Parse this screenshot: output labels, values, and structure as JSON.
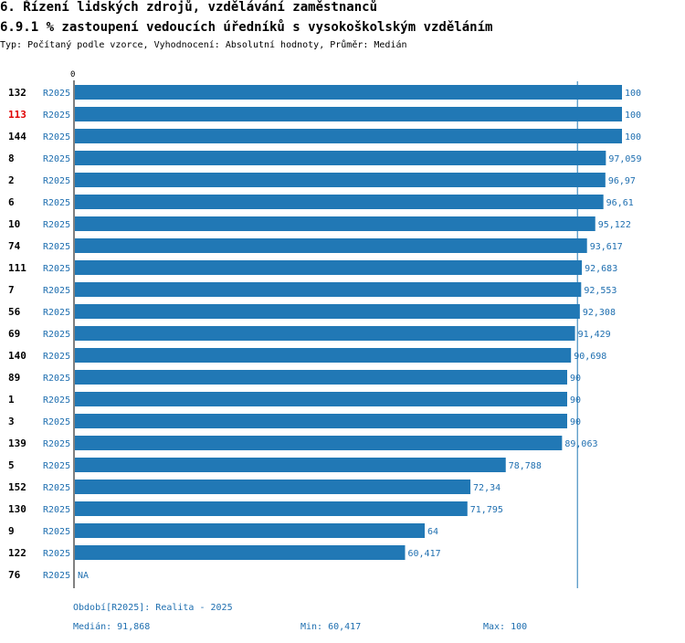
{
  "header": {
    "title": "6. Řízení lidských zdrojů, vzdělávání zaměstnanců",
    "subtitle": "6.9.1 % zastoupení vedoucích úředníků s vysokoškolským vzděláním",
    "type_line": "Typ: Počítaný podle vzorce, Vyhodnocení: Absolutní hodnoty, Průměr: Medián"
  },
  "colors": {
    "bar": "#2178b5",
    "series_label": "#1f6fb0",
    "highlight": "#e00000",
    "median_line": "#2178b5",
    "text": "#000000"
  },
  "chart_data": {
    "type": "bar",
    "orientation": "horizontal",
    "axis_zero_label": "0",
    "xlim": [
      0,
      100
    ],
    "median": 91.868,
    "highlighted_category": "113",
    "series_name": "R2025",
    "categories": [
      "132",
      "113",
      "144",
      "8",
      "2",
      "6",
      "10",
      "74",
      "111",
      "7",
      "56",
      "69",
      "140",
      "89",
      "1",
      "3",
      "139",
      "5",
      "152",
      "130",
      "9",
      "122",
      "76"
    ],
    "values": [
      100,
      100,
      100,
      97.059,
      96.97,
      96.61,
      95.122,
      93.617,
      92.683,
      92.553,
      92.308,
      91.429,
      90.698,
      90,
      90,
      90,
      89.063,
      78.788,
      72.34,
      71.795,
      64,
      60.417,
      null
    ],
    "value_labels": [
      "100",
      "100",
      "100",
      "97,059",
      "96,97",
      "96,61",
      "95,122",
      "93,617",
      "92,683",
      "92,553",
      "92,308",
      "91,429",
      "90,698",
      "90",
      "90",
      "90",
      "89,063",
      "78,788",
      "72,34",
      "71,795",
      "64",
      "60,417",
      "NA"
    ]
  },
  "footer": {
    "period": "Období[R2025]: Realita - 2025",
    "median": "Medián: 91,868",
    "min": "Min: 60,417",
    "max": "Max: 100"
  }
}
